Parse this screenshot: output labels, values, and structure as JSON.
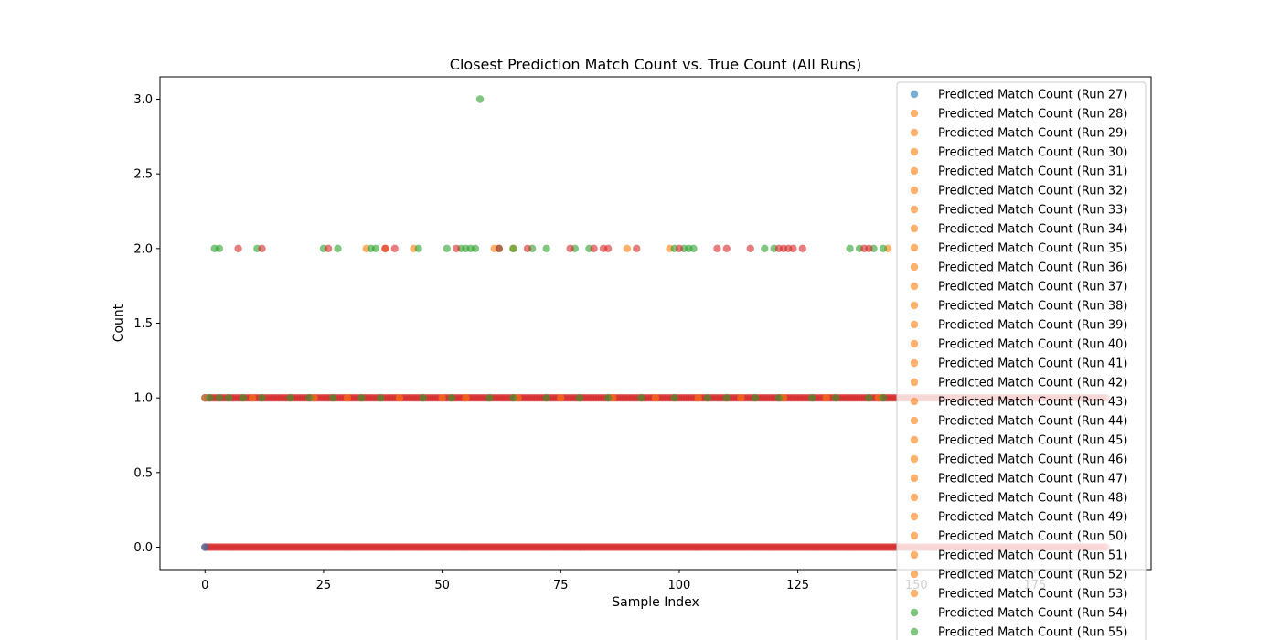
{
  "chart_data": {
    "type": "scatter",
    "title": "Closest Prediction Match Count vs. True Count (All Runs)",
    "xlabel": "Sample Index",
    "ylabel": "Count",
    "xlim": [
      -9.5,
      199.5
    ],
    "ylim": [
      -0.15,
      3.15
    ],
    "xticks": [
      0,
      25,
      50,
      75,
      100,
      125,
      150,
      175
    ],
    "yticks": [
      0.0,
      0.5,
      1.0,
      1.5,
      2.0,
      2.5,
      3.0
    ],
    "xtick_labels": [
      "0",
      "25",
      "50",
      "75",
      "100",
      "125",
      "150",
      "175"
    ],
    "ytick_labels": [
      "0.0",
      "0.5",
      "1.0",
      "1.5",
      "2.0",
      "2.5",
      "3.0"
    ],
    "grid": false,
    "legend_location": "upper right",
    "colors": {
      "blue": "#1f77b4",
      "orange": "#ff7f0e",
      "green": "#2ca02c",
      "red": "#d62728"
    },
    "legend": [
      {
        "label": "Predicted Match Count (Run 27)",
        "color": "#1f77b4"
      },
      {
        "label": "Predicted Match Count (Run 28)",
        "color": "#ff7f0e"
      },
      {
        "label": "Predicted Match Count (Run 29)",
        "color": "#ff7f0e"
      },
      {
        "label": "Predicted Match Count (Run 30)",
        "color": "#ff7f0e"
      },
      {
        "label": "Predicted Match Count (Run 31)",
        "color": "#ff7f0e"
      },
      {
        "label": "Predicted Match Count (Run 32)",
        "color": "#ff7f0e"
      },
      {
        "label": "Predicted Match Count (Run 33)",
        "color": "#ff7f0e"
      },
      {
        "label": "Predicted Match Count (Run 34)",
        "color": "#ff7f0e"
      },
      {
        "label": "Predicted Match Count (Run 35)",
        "color": "#ff7f0e"
      },
      {
        "label": "Predicted Match Count (Run 36)",
        "color": "#ff7f0e"
      },
      {
        "label": "Predicted Match Count (Run 37)",
        "color": "#ff7f0e"
      },
      {
        "label": "Predicted Match Count (Run 38)",
        "color": "#ff7f0e"
      },
      {
        "label": "Predicted Match Count (Run 39)",
        "color": "#ff7f0e"
      },
      {
        "label": "Predicted Match Count (Run 40)",
        "color": "#ff7f0e"
      },
      {
        "label": "Predicted Match Count (Run 41)",
        "color": "#ff7f0e"
      },
      {
        "label": "Predicted Match Count (Run 42)",
        "color": "#ff7f0e"
      },
      {
        "label": "Predicted Match Count (Run 43)",
        "color": "#ff7f0e"
      },
      {
        "label": "Predicted Match Count (Run 44)",
        "color": "#ff7f0e"
      },
      {
        "label": "Predicted Match Count (Run 45)",
        "color": "#ff7f0e"
      },
      {
        "label": "Predicted Match Count (Run 46)",
        "color": "#ff7f0e"
      },
      {
        "label": "Predicted Match Count (Run 47)",
        "color": "#ff7f0e"
      },
      {
        "label": "Predicted Match Count (Run 48)",
        "color": "#ff7f0e"
      },
      {
        "label": "Predicted Match Count (Run 49)",
        "color": "#ff7f0e"
      },
      {
        "label": "Predicted Match Count (Run 50)",
        "color": "#ff7f0e"
      },
      {
        "label": "Predicted Match Count (Run 51)",
        "color": "#ff7f0e"
      },
      {
        "label": "Predicted Match Count (Run 52)",
        "color": "#ff7f0e"
      },
      {
        "label": "Predicted Match Count (Run 53)",
        "color": "#ff7f0e"
      },
      {
        "label": "Predicted Match Count (Run 54)",
        "color": "#2ca02c"
      },
      {
        "label": "Predicted Match Count (Run 55)",
        "color": "#2ca02c"
      }
    ],
    "series": [
      {
        "color": "#1f77b4",
        "points": [
          [
            0,
            0
          ],
          [
            0,
            1
          ]
        ]
      },
      {
        "color": "#ff7f0e",
        "points": [
          [
            34,
            2
          ],
          [
            38,
            2
          ],
          [
            44,
            2
          ],
          [
            61,
            2
          ],
          [
            65,
            2
          ],
          [
            89,
            2
          ],
          [
            98,
            2
          ],
          [
            144,
            2
          ],
          [
            0,
            1
          ],
          [
            10,
            1
          ],
          [
            23,
            1
          ],
          [
            30,
            1
          ],
          [
            41,
            1
          ],
          [
            50,
            1
          ],
          [
            55,
            1
          ],
          [
            66,
            1
          ],
          [
            75,
            1
          ],
          [
            86,
            1
          ],
          [
            95,
            1
          ],
          [
            104,
            1
          ],
          [
            113,
            1
          ],
          [
            122,
            1
          ],
          [
            131,
            1
          ],
          [
            142,
            1
          ]
        ]
      },
      {
        "color": "#2ca02c",
        "points": [
          [
            2,
            2
          ],
          [
            3,
            2
          ],
          [
            11,
            2
          ],
          [
            25,
            2
          ],
          [
            28,
            2
          ],
          [
            35,
            2
          ],
          [
            36,
            2
          ],
          [
            45,
            2
          ],
          [
            51,
            2
          ],
          [
            54,
            2
          ],
          [
            55,
            2
          ],
          [
            56,
            2
          ],
          [
            57,
            2
          ],
          [
            62,
            2
          ],
          [
            65,
            2
          ],
          [
            69,
            2
          ],
          [
            72,
            2
          ],
          [
            78,
            2
          ],
          [
            81,
            2
          ],
          [
            99,
            2
          ],
          [
            101,
            2
          ],
          [
            102,
            2
          ],
          [
            103,
            2
          ],
          [
            118,
            2
          ],
          [
            120,
            2
          ],
          [
            136,
            2
          ],
          [
            138,
            2
          ],
          [
            141,
            2
          ],
          [
            143,
            2
          ],
          [
            58,
            3
          ],
          [
            1,
            1
          ],
          [
            3,
            1
          ],
          [
            5,
            1
          ],
          [
            8,
            1
          ],
          [
            12,
            1
          ],
          [
            18,
            1
          ],
          [
            22,
            1
          ],
          [
            27,
            1
          ],
          [
            33,
            1
          ],
          [
            37,
            1
          ],
          [
            46,
            1
          ],
          [
            52,
            1
          ],
          [
            60,
            1
          ],
          [
            65,
            1
          ],
          [
            72,
            1
          ],
          [
            79,
            1
          ],
          [
            85,
            1
          ],
          [
            92,
            1
          ],
          [
            99,
            1
          ],
          [
            106,
            1
          ],
          [
            110,
            1
          ],
          [
            116,
            1
          ],
          [
            121,
            1
          ],
          [
            128,
            1
          ],
          [
            133,
            1
          ],
          [
            140,
            1
          ],
          [
            143,
            1
          ]
        ]
      },
      {
        "color": "#d62728",
        "points": [
          [
            7,
            2
          ],
          [
            12,
            2
          ],
          [
            26,
            2
          ],
          [
            38,
            2
          ],
          [
            40,
            2
          ],
          [
            53,
            2
          ],
          [
            62,
            2
          ],
          [
            68,
            2
          ],
          [
            77,
            2
          ],
          [
            82,
            2
          ],
          [
            84,
            2
          ],
          [
            85,
            2
          ],
          [
            91,
            2
          ],
          [
            100,
            2
          ],
          [
            108,
            2
          ],
          [
            110,
            2
          ],
          [
            115,
            2
          ],
          [
            121,
            2
          ],
          [
            122,
            2
          ],
          [
            123,
            2
          ],
          [
            124,
            2
          ],
          [
            126,
            2
          ],
          [
            139,
            2
          ],
          [
            140,
            2
          ]
        ]
      }
    ],
    "dense_rows": [
      {
        "y": 0,
        "x_from": 0,
        "x_to": 190,
        "step": 0.5,
        "color": "#d62728"
      },
      {
        "y": 1,
        "x_from": 0,
        "x_to": 190,
        "step": 0.5,
        "color": "#d62728"
      }
    ]
  }
}
